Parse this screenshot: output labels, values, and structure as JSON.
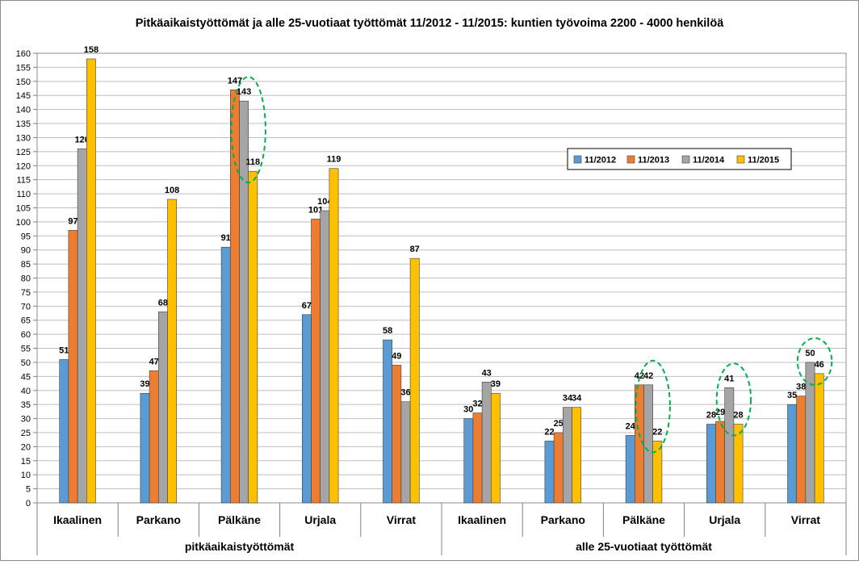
{
  "chart_data": {
    "type": "bar",
    "title": "Pitkäaikaistyöttömät ja alle 25-vuotiaat työttömät 11/2012 - 11/2015: kuntien työvoima 2200 - 4000 henkilöä",
    "xlabel": "",
    "ylabel": "",
    "ylim": [
      0,
      160
    ],
    "ytick_step": 5,
    "grid": true,
    "legend_position": "right-middle",
    "groups": [
      {
        "label": "pitkäaikaistyöttömät",
        "categories": [
          "Ikaalinen",
          "Parkano",
          "Pälkäne",
          "Urjala",
          "Virrat"
        ]
      },
      {
        "label": "alle 25-vuotiaat työttömät",
        "categories": [
          "Ikaalinen",
          "Parkano",
          "Pälkäne",
          "Urjala",
          "Virrat"
        ]
      }
    ],
    "categories": [
      "Ikaalinen",
      "Parkano",
      "Pälkäne",
      "Urjala",
      "Virrat",
      "Ikaalinen",
      "Parkano",
      "Pälkäne",
      "Urjala",
      "Virrat"
    ],
    "series": [
      {
        "name": "11/2012",
        "color": "#5B9BD5",
        "values": [
          51,
          39,
          91,
          67,
          58,
          30,
          22,
          24,
          28,
          35
        ]
      },
      {
        "name": "11/2013",
        "color": "#ED7D31",
        "values": [
          97,
          47,
          147,
          101,
          49,
          32,
          25,
          42,
          29,
          38
        ]
      },
      {
        "name": "11/2014",
        "color": "#A5A5A5",
        "values": [
          126,
          68,
          143,
          104,
          36,
          43,
          34,
          42,
          41,
          50
        ]
      },
      {
        "name": "11/2015",
        "color": "#FFC000",
        "values": [
          158,
          108,
          118,
          119,
          87,
          39,
          34,
          22,
          28,
          46
        ]
      }
    ],
    "annotations": [
      {
        "type": "dashed-ellipse",
        "color": "#00B050",
        "category_index": 2,
        "series": [
          "11/2014",
          "11/2015"
        ]
      },
      {
        "type": "dashed-ellipse",
        "color": "#00B050",
        "category_index": 7,
        "series": [
          "11/2014",
          "11/2015"
        ]
      },
      {
        "type": "dashed-ellipse",
        "color": "#00B050",
        "category_index": 8,
        "series": [
          "11/2014",
          "11/2015"
        ]
      },
      {
        "type": "dashed-ellipse",
        "color": "#00B050",
        "category_index": 9,
        "series": [
          "11/2014",
          "11/2015"
        ]
      }
    ]
  }
}
